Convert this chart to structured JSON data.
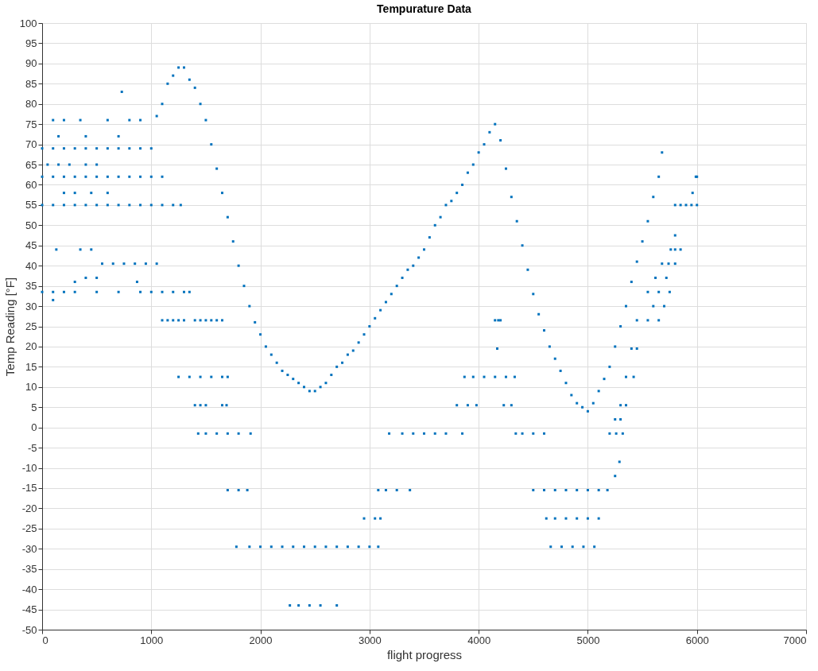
{
  "chart_data": {
    "type": "scatter",
    "title": "Tempurature Data",
    "xlabel": "flight progress",
    "ylabel": "Temp Reading [°F]",
    "xlim": [
      0,
      7000
    ],
    "xticks": [
      0,
      1000,
      2000,
      3000,
      4000,
      5000,
      6000,
      7000
    ],
    "ylim": [
      -50,
      100
    ],
    "yticks": [
      -50,
      -45,
      -40,
      -35,
      -30,
      -25,
      -20,
      -15,
      -10,
      -5,
      0,
      5,
      10,
      15,
      20,
      25,
      30,
      35,
      40,
      45,
      50,
      55,
      60,
      65,
      70,
      75,
      80,
      85,
      90,
      95,
      100
    ],
    "grid": true,
    "marker": "square",
    "series": [
      {
        "color": "#0072bd",
        "x": [
          0,
          100,
          200,
          300,
          400,
          500,
          600,
          700,
          800,
          900,
          1000,
          0,
          100,
          200,
          300,
          400,
          500,
          600,
          700,
          800,
          900,
          1000,
          1100,
          0,
          100,
          200,
          300,
          400,
          500,
          600,
          700,
          800,
          900,
          1000,
          1100,
          1200,
          1270,
          550,
          650,
          750,
          850,
          950,
          1050,
          0,
          100,
          200,
          300,
          500,
          700,
          900,
          1000,
          1100,
          1200,
          1300,
          1350,
          1100,
          1150,
          1200,
          1250,
          1300,
          1400,
          1450,
          1500,
          1550,
          1600,
          1650,
          1250,
          1350,
          1450,
          1550,
          1650,
          1700,
          1400,
          1450,
          1500,
          1650,
          1690,
          1430,
          1500,
          1600,
          1700,
          1800,
          1910,
          1700,
          1800,
          1880,
          1780,
          1900,
          2000,
          2100,
          2200,
          2300,
          2400,
          2500,
          2600,
          2700,
          2800,
          2900,
          3000,
          3080,
          2270,
          2350,
          2450,
          2550,
          2700,
          2950,
          3050,
          3100,
          3080,
          3150,
          3250,
          3370,
          3180,
          3300,
          3400,
          3500,
          3600,
          3700,
          3850,
          3870,
          3950,
          4050,
          4150,
          4250,
          4330,
          3800,
          3900,
          3980,
          4230,
          4300,
          4340,
          4400,
          4500,
          4600,
          4500,
          4600,
          4700,
          4800,
          4900,
          5000,
          5100,
          5180,
          4620,
          4700,
          4800,
          4900,
          5000,
          5100,
          4660,
          4760,
          4860,
          4960,
          5060,
          100,
          200,
          350,
          600,
          800,
          900,
          150,
          400,
          700,
          730,
          50,
          150,
          250,
          400,
          500,
          200,
          300,
          450,
          600,
          130,
          350,
          450,
          400,
          500,
          100,
          300,
          870,
          1050,
          1100,
          1150,
          1200,
          1250,
          1300,
          1350,
          1400,
          1450,
          1500,
          1550,
          1600,
          1650,
          1700,
          1750,
          1800,
          1850,
          1900,
          1950,
          2000,
          2050,
          2100,
          2150,
          2200,
          2250,
          2300,
          2350,
          2400,
          2450,
          2500,
          2550,
          2600,
          2650,
          2700,
          2750,
          2800,
          2850,
          2900,
          2950,
          3000,
          3050,
          3100,
          3150,
          3200,
          3250,
          3300,
          3350,
          3400,
          3450,
          3500,
          3550,
          3600,
          3650,
          3700,
          3750,
          3800,
          3850,
          3900,
          3950,
          4000,
          4050,
          4100,
          4150,
          4200,
          4250,
          4300,
          4350,
          4400,
          4450,
          4500,
          4550,
          4600,
          4650,
          4700,
          4750,
          4800,
          4850,
          4900,
          4950,
          5000,
          5050,
          5100,
          5150,
          5200,
          5250,
          5300,
          5350,
          5400,
          5450,
          5500,
          5550,
          5600,
          5650,
          5680,
          5800,
          5850,
          5900,
          5950,
          6000,
          5960,
          5990,
          6000,
          5760,
          5800,
          5850,
          5800,
          5680,
          5740,
          5800,
          5620,
          5720,
          5550,
          5650,
          5750,
          5600,
          5700,
          5450,
          5550,
          5650,
          5400,
          5450,
          5350,
          5420,
          5300,
          5350,
          5250,
          5300,
          5200,
          5260,
          5320,
          5250,
          5290,
          4150,
          4180,
          4170,
          4200
        ],
        "values": [
          69,
          69,
          69,
          69,
          69,
          69,
          69,
          69,
          69,
          69,
          69,
          62,
          62,
          62,
          62,
          62,
          62,
          62,
          62,
          62,
          62,
          62,
          62,
          55,
          55,
          55,
          55,
          55,
          55,
          55,
          55,
          55,
          55,
          55,
          55,
          55,
          55,
          40.5,
          40.5,
          40.5,
          40.5,
          40.5,
          40.5,
          33.5,
          33.5,
          33.5,
          33.5,
          33.5,
          33.5,
          33.5,
          33.5,
          33.5,
          33.5,
          33.5,
          33.5,
          26.5,
          26.5,
          26.5,
          26.5,
          26.5,
          26.5,
          26.5,
          26.5,
          26.5,
          26.5,
          26.5,
          12.5,
          12.5,
          12.5,
          12.5,
          12.5,
          12.5,
          5.5,
          5.5,
          5.5,
          5.5,
          5.5,
          -1.5,
          -1.5,
          -1.5,
          -1.5,
          -1.5,
          -1.5,
          -15.5,
          -15.5,
          -15.5,
          -29.5,
          -29.5,
          -29.5,
          -29.5,
          -29.5,
          -29.5,
          -29.5,
          -29.5,
          -29.5,
          -29.5,
          -29.5,
          -29.5,
          -29.5,
          -29.5,
          -44,
          -44,
          -44,
          -44,
          -44,
          -22.5,
          -22.5,
          -22.5,
          -15.5,
          -15.5,
          -15.5,
          -15.5,
          -1.5,
          -1.5,
          -1.5,
          -1.5,
          -1.5,
          -1.5,
          -1.5,
          12.5,
          12.5,
          12.5,
          12.5,
          12.5,
          12.5,
          5.5,
          5.5,
          5.5,
          5.5,
          5.5,
          -1.5,
          -1.5,
          -1.5,
          -1.5,
          -15.5,
          -15.5,
          -15.5,
          -15.5,
          -15.5,
          -15.5,
          -15.5,
          -15.5,
          -22.5,
          -22.5,
          -22.5,
          -22.5,
          -22.5,
          -22.5,
          -29.5,
          -29.5,
          -29.5,
          -29.5,
          -29.5,
          76,
          76,
          76,
          76,
          76,
          76,
          72,
          72,
          72,
          83,
          65,
          65,
          65,
          65,
          65,
          58,
          58,
          58,
          58,
          44,
          44,
          44,
          37,
          37,
          31.5,
          36,
          36,
          77,
          80,
          85,
          87,
          89,
          89,
          86,
          84,
          80,
          76,
          70,
          64,
          58,
          52,
          46,
          40,
          35,
          30,
          26,
          23,
          20,
          18,
          16,
          14,
          13,
          12,
          11,
          10,
          9,
          9,
          10,
          11,
          13,
          15,
          16,
          18,
          19,
          21,
          23,
          25,
          27,
          29,
          31,
          33,
          35,
          37,
          39,
          40,
          42,
          44,
          47,
          50,
          52,
          55,
          56,
          58,
          60,
          63,
          65,
          68,
          70,
          73,
          75,
          71,
          64,
          57,
          51,
          45,
          39,
          33,
          28,
          24,
          20,
          17,
          14,
          11,
          8,
          6,
          5,
          4,
          6,
          9,
          12,
          15,
          20,
          25,
          30,
          36,
          41,
          46,
          51,
          57,
          62,
          68,
          55,
          55,
          55,
          55,
          55,
          58,
          62,
          62,
          44,
          44,
          44,
          47.5,
          40.5,
          40.5,
          40.5,
          37,
          37,
          33.5,
          33.5,
          33.5,
          30,
          30,
          26.5,
          26.5,
          26.5,
          19.5,
          19.5,
          12.5,
          12.5,
          5.5,
          5.5,
          2,
          2,
          -1.5,
          -1.5,
          -1.5,
          -12,
          -8.5,
          26.5,
          26.5,
          19.5,
          26.5
        ]
      }
    ]
  }
}
